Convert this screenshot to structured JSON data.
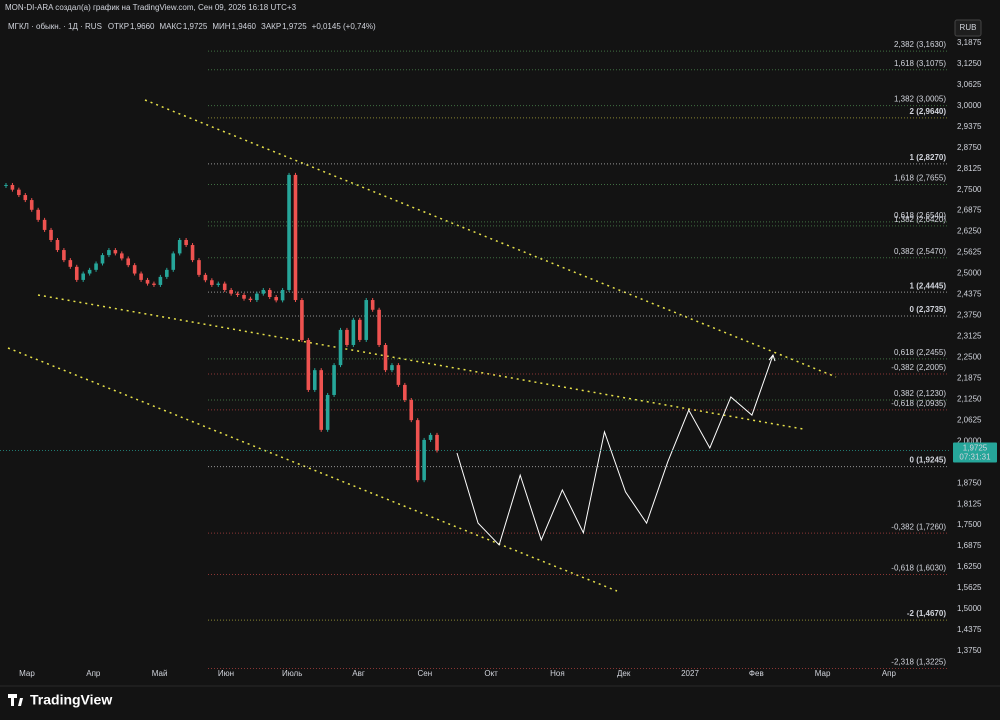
{
  "header": {
    "caption": "MON-DI-ARA создал(а) график на TradingView.com, Сен 09, 2026 16:18 UTC+3",
    "symbol": "МГКЛ · обыкн. · 1Д · RUS",
    "fields": [
      {
        "name": "ОТКР",
        "value": "1,9660"
      },
      {
        "name": "МАКС",
        "value": "1,9725"
      },
      {
        "name": "МИН",
        "value": "1,9460"
      },
      {
        "name": "ЗАКР",
        "value": "1,9725"
      }
    ],
    "change": "+0,0145 (+0,74%)",
    "currency": "RUB",
    "logo": "TradingView"
  },
  "chart_data": {
    "type": "candlestick",
    "up_color": "#26a69a",
    "down_color": "#ef5350",
    "closes": [
      2.764,
      2.75,
      2.734,
      2.719,
      2.69,
      2.66,
      2.63,
      2.6,
      2.57,
      2.54,
      2.52,
      2.481,
      2.5,
      2.511,
      2.53,
      2.555,
      2.57,
      2.56,
      2.545,
      2.525,
      2.5,
      2.481,
      2.47,
      2.466,
      2.49,
      2.511,
      2.56,
      2.6,
      2.585,
      2.54,
      2.496,
      2.48,
      2.466,
      2.47,
      2.451,
      2.44,
      2.436,
      2.425,
      2.421,
      2.44,
      2.451,
      2.43,
      2.42,
      2.451,
      2.794,
      2.421,
      2.302,
      2.153,
      2.212,
      2.034,
      2.138,
      2.227,
      2.332,
      2.287,
      2.362,
      2.302,
      2.421,
      2.392,
      2.287,
      2.212,
      2.227,
      2.168,
      2.123,
      2.063,
      1.884,
      2.004,
      2.019,
      1.9725
    ],
    "projection": {
      "color": "#ffffff",
      "values": [
        1.965,
        1.756,
        1.691,
        1.899,
        1.706,
        1.855,
        1.727,
        2.028,
        1.849,
        1.756,
        1.938,
        2.093,
        1.98,
        2.132,
        2.078,
        2.257
      ]
    },
    "x_labels": [
      "Мар",
      "Апр",
      "Май",
      "Июн",
      "Июль",
      "Авг",
      "Сен",
      "Окт",
      "Ноя",
      "Дек",
      "2027",
      "Фев",
      "Мар",
      "Апр"
    ],
    "ylim": [
      1.342,
      3.22
    ],
    "yticks": [
      {
        "value": 3.1875,
        "label": "3,1875"
      },
      {
        "value": 3.125,
        "label": "3,1250"
      },
      {
        "value": 3.0625,
        "label": "3,0625"
      },
      {
        "value": 3.0,
        "label": "3,0000"
      },
      {
        "value": 2.9375,
        "label": "2,9375"
      },
      {
        "value": 2.875,
        "label": "2,8750"
      },
      {
        "value": 2.8125,
        "label": "2,8125"
      },
      {
        "value": 2.75,
        "label": "2,7500"
      },
      {
        "value": 2.6875,
        "label": "2,6875"
      },
      {
        "value": 2.625,
        "label": "2,6250"
      },
      {
        "value": 2.5625,
        "label": "2,5625"
      },
      {
        "value": 2.5,
        "label": "2,5000"
      },
      {
        "value": 2.4375,
        "label": "2,4375"
      },
      {
        "value": 2.375,
        "label": "2,3750"
      },
      {
        "value": 2.3125,
        "label": "2,3125"
      },
      {
        "value": 2.25,
        "label": "2,2500"
      },
      {
        "value": 2.1875,
        "label": "2,1875"
      },
      {
        "value": 2.125,
        "label": "2,1250"
      },
      {
        "value": 2.0625,
        "label": "2,0625"
      },
      {
        "value": 2.0,
        "label": "2,0000"
      },
      {
        "value": 1.875,
        "label": "1,8750"
      },
      {
        "value": 1.8125,
        "label": "1,8125"
      },
      {
        "value": 1.75,
        "label": "1,7500"
      },
      {
        "value": 1.6875,
        "label": "1,6875"
      },
      {
        "value": 1.625,
        "label": "1,6250"
      },
      {
        "value": 1.5625,
        "label": "1,5625"
      },
      {
        "value": 1.5,
        "label": "1,5000"
      },
      {
        "value": 1.4375,
        "label": "1,4375"
      },
      {
        "value": 1.375,
        "label": "1,3750"
      }
    ],
    "levels": [
      {
        "value": 3.163,
        "label": "2,382 (3,1630)",
        "color": "#66bb6a"
      },
      {
        "value": 3.1075,
        "label": "1,618 (3,1075)",
        "color": "#66bb6a"
      },
      {
        "value": 3.0005,
        "label": "1,382 (3,0005)",
        "color": "#66bb6a"
      },
      {
        "value": 2.964,
        "label": "2 (2,9640)",
        "color": "#e8e24a"
      },
      {
        "value": 2.827,
        "label": "1 (2,8270)",
        "color": "#ffffff"
      },
      {
        "value": 2.7655,
        "label": "1,618 (2,7655)",
        "color": "#66bb6a"
      },
      {
        "value": 2.654,
        "label": "0,618 (2,6540)",
        "color": "#66bb6a"
      },
      {
        "value": 2.642,
        "label": "1,382 (2,6420)",
        "color": "#66bb6a"
      },
      {
        "value": 2.547,
        "label": "0,382 (2,5470)",
        "color": "#66bb6a"
      },
      {
        "value": 2.4445,
        "label": "1 (2,4445)",
        "color": "#ffffff"
      },
      {
        "value": 2.3735,
        "label": "0 (2,3735)",
        "color": "#ffffff"
      },
      {
        "value": 2.2455,
        "label": "0,618 (2,2455)",
        "color": "#66bb6a"
      },
      {
        "value": 2.2005,
        "label": "-0,382 (2,2005)",
        "color": "#ef5350"
      },
      {
        "value": 2.123,
        "label": "0,382 (2,1230)",
        "color": "#66bb6a"
      },
      {
        "value": 2.0935,
        "label": "-0,618 (2,0935)",
        "color": "#ef5350"
      },
      {
        "value": 1.9245,
        "label": "0 (1,9245)",
        "color": "#ffffff"
      },
      {
        "value": 1.726,
        "label": "-0,382 (1,7260)",
        "color": "#ef5350"
      },
      {
        "value": 1.603,
        "label": "-0,618 (1,6030)",
        "color": "#ef5350"
      },
      {
        "value": 1.467,
        "label": "-2 (1,4670)",
        "color": "#e8e24a"
      },
      {
        "value": 1.3225,
        "label": "-2,318 (1,3225)",
        "color": "#ef5350"
      }
    ],
    "last_price": {
      "value": 1.9725,
      "label": "1,9725",
      "timer": "07:31:31",
      "color": "#26a69a"
    }
  }
}
